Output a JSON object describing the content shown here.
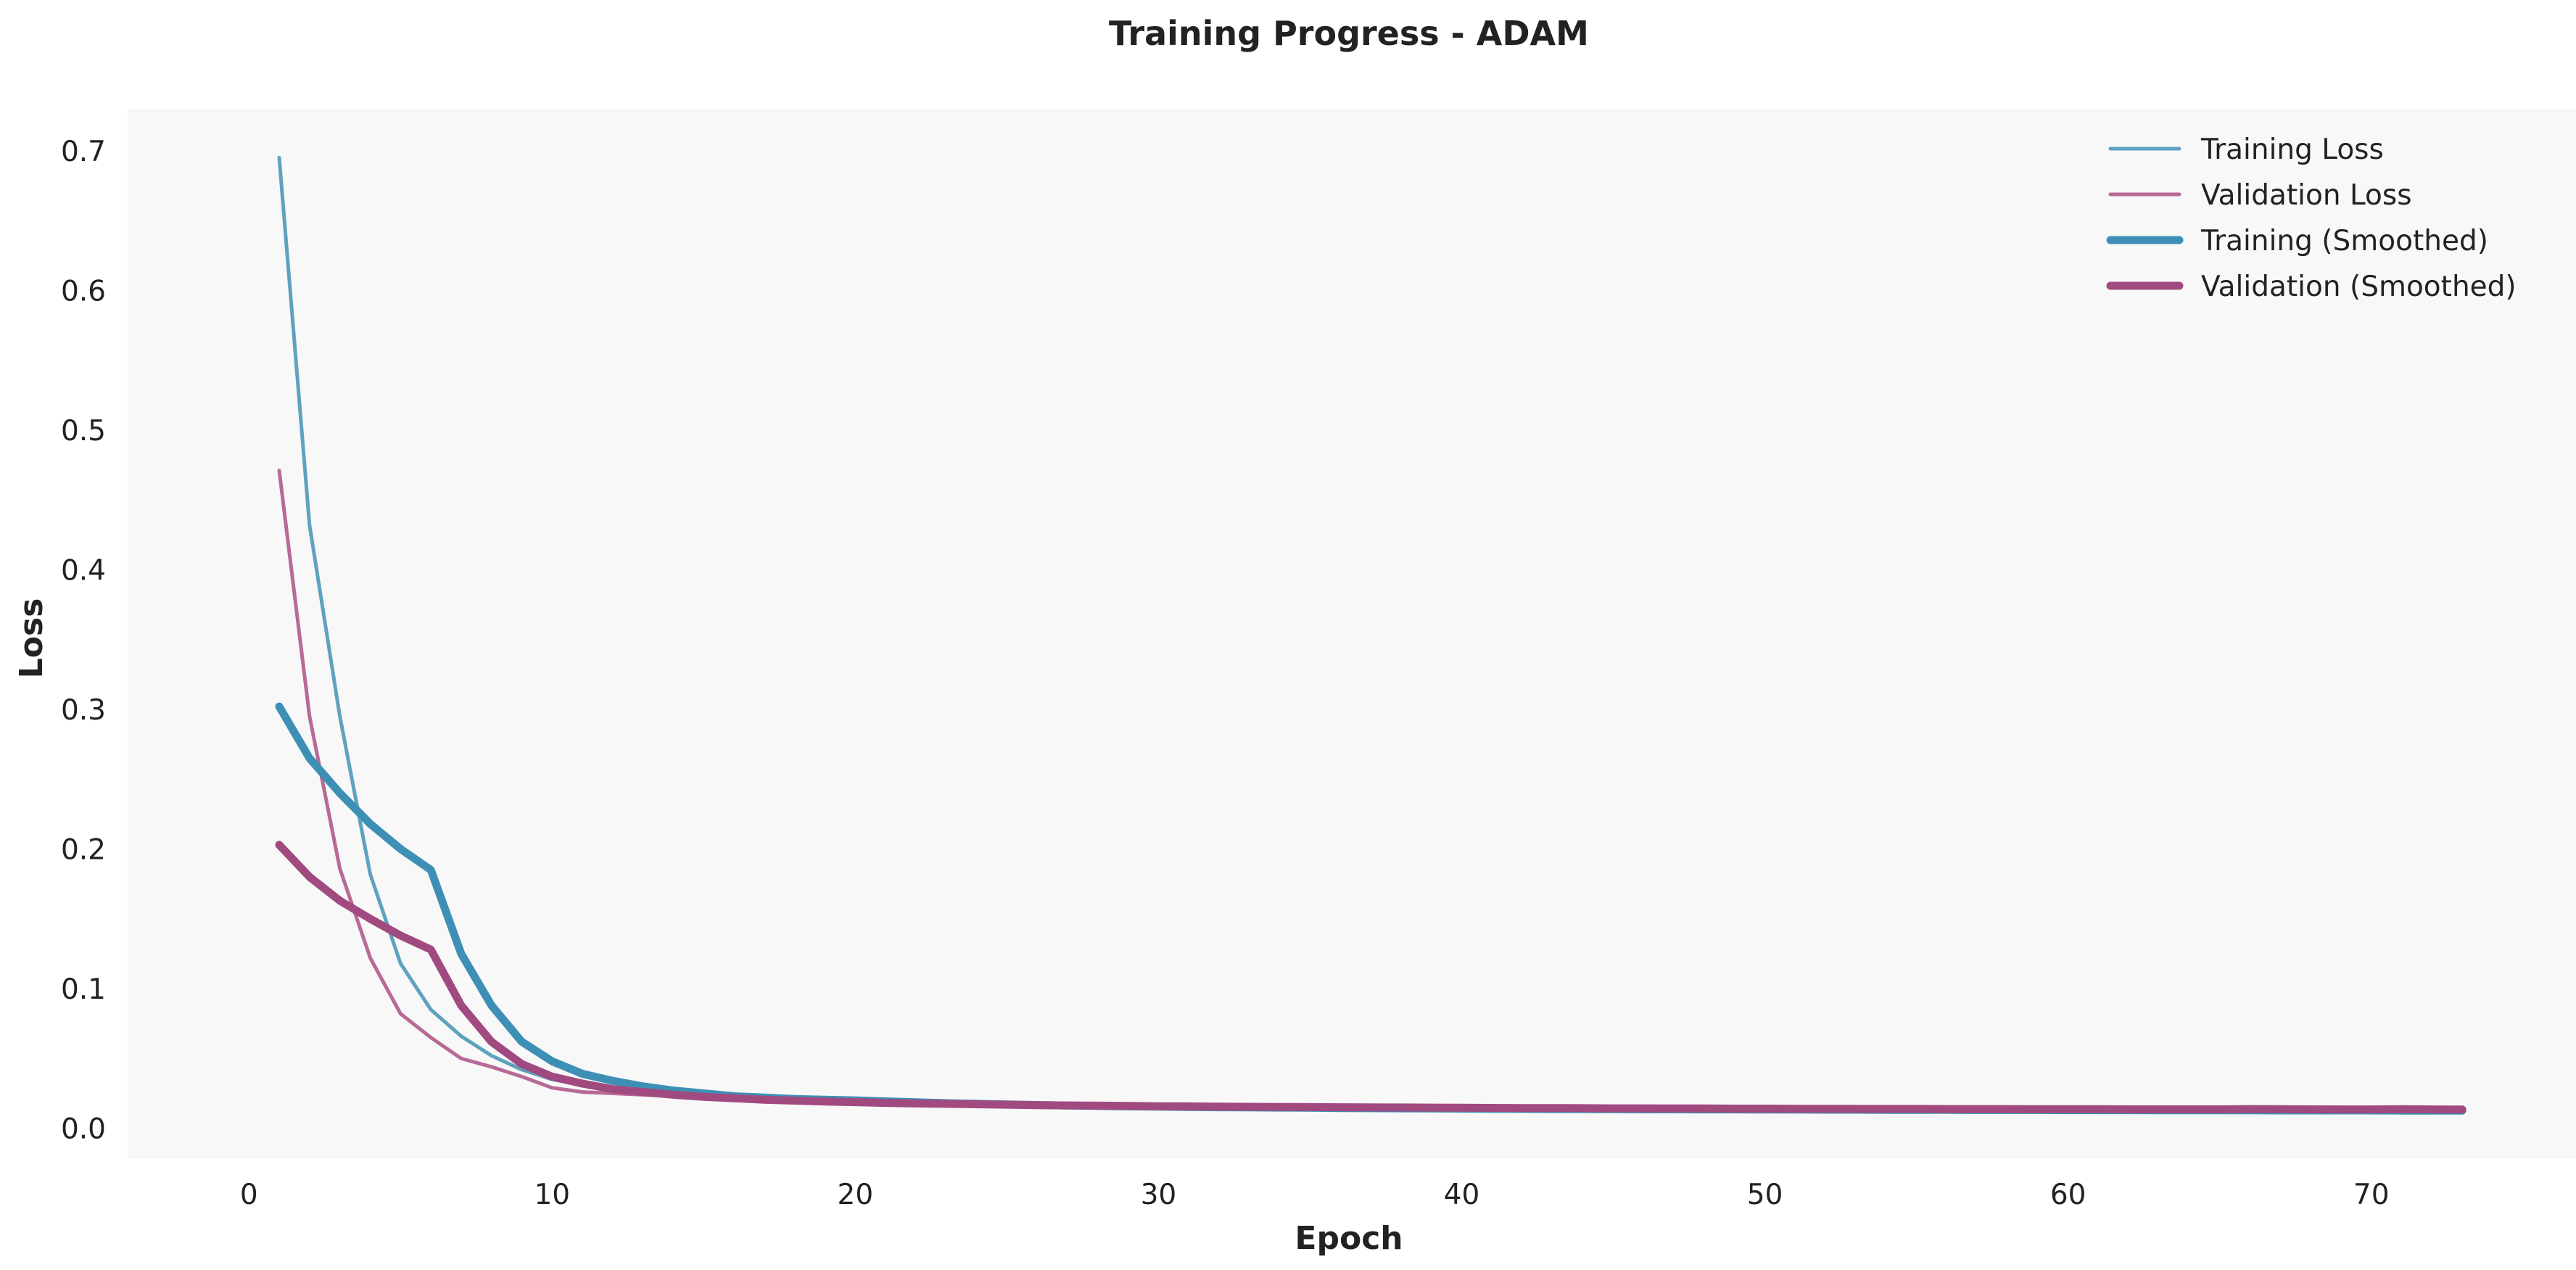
{
  "chart_data": {
    "type": "line",
    "title": "Training Progress - ADAM",
    "xlabel": "Epoch",
    "ylabel": "Loss",
    "xlim": [
      -4.0,
      76.8
    ],
    "ylim": [
      -0.022,
      0.73
    ],
    "xticks": [
      0,
      10,
      20,
      30,
      40,
      50,
      60,
      70
    ],
    "yticks": [
      0.0,
      0.1,
      0.2,
      0.3,
      0.4,
      0.5,
      0.6,
      0.7
    ],
    "xtick_labels": [
      "0",
      "10",
      "20",
      "30",
      "40",
      "50",
      "60",
      "70"
    ],
    "ytick_labels": [
      "0.0",
      "0.1",
      "0.2",
      "0.3",
      "0.4",
      "0.5",
      "0.6",
      "0.7"
    ],
    "grid": false,
    "plot_background": "#f8f8f8",
    "legend_position": "top-right",
    "x": [
      1,
      2,
      3,
      4,
      5,
      6,
      7,
      8,
      9,
      10,
      11,
      12,
      13,
      14,
      15,
      16,
      17,
      18,
      19,
      20,
      21,
      22,
      23,
      24,
      25,
      26,
      27,
      28,
      29,
      30,
      31,
      32,
      33,
      34,
      35,
      36,
      37,
      38,
      39,
      40,
      41,
      42,
      43,
      44,
      45,
      46,
      47,
      48,
      49,
      50,
      51,
      52,
      53,
      54,
      55,
      56,
      57,
      58,
      59,
      60,
      61,
      62,
      63,
      64,
      65,
      66,
      67,
      68,
      69,
      70,
      71,
      72,
      73
    ],
    "series": [
      {
        "name": "Training Loss",
        "color": "#5fa2c0",
        "style": "thin",
        "values": [
          0.695,
          0.432,
          0.295,
          0.182,
          0.118,
          0.085,
          0.066,
          0.052,
          0.042,
          0.035,
          0.031,
          0.028,
          0.026,
          0.024,
          0.023,
          0.022,
          0.021,
          0.02,
          0.019,
          0.018,
          0.0175,
          0.017,
          0.0165,
          0.016,
          0.0158,
          0.0155,
          0.0152,
          0.015,
          0.0148,
          0.0146,
          0.0145,
          0.0144,
          0.0143,
          0.0142,
          0.0141,
          0.014,
          0.0139,
          0.0138,
          0.0137,
          0.0136,
          0.0136,
          0.0135,
          0.0135,
          0.0134,
          0.0134,
          0.0133,
          0.0133,
          0.0132,
          0.0132,
          0.0132,
          0.0131,
          0.0131,
          0.0131,
          0.013,
          0.013,
          0.013,
          0.013,
          0.0129,
          0.0129,
          0.0129,
          0.0129,
          0.0128,
          0.0128,
          0.0128,
          0.0128,
          0.0128,
          0.0127,
          0.0127,
          0.0127,
          0.0127,
          0.0127,
          0.0126,
          0.0126
        ]
      },
      {
        "name": "Validation Loss",
        "color": "#b86a96",
        "style": "thin",
        "values": [
          0.471,
          0.295,
          0.186,
          0.122,
          0.082,
          0.065,
          0.05,
          0.044,
          0.037,
          0.029,
          0.026,
          0.025,
          0.024,
          0.023,
          0.022,
          0.021,
          0.0205,
          0.02,
          0.0195,
          0.019,
          0.0185,
          0.018,
          0.0178,
          0.0175,
          0.0172,
          0.017,
          0.0168,
          0.0165,
          0.0163,
          0.016,
          0.0158,
          0.0157,
          0.0155,
          0.0154,
          0.0152,
          0.0151,
          0.015,
          0.0149,
          0.0148,
          0.0147,
          0.0146,
          0.0145,
          0.0144,
          0.0143,
          0.0143,
          0.0142,
          0.0141,
          0.0141,
          0.014,
          0.014,
          0.0139,
          0.0139,
          0.0138,
          0.0138,
          0.0138,
          0.0137,
          0.0137,
          0.0136,
          0.0136,
          0.0136,
          0.0136,
          0.0135,
          0.0135,
          0.0135,
          0.0135,
          0.0152,
          0.0134,
          0.0134,
          0.0134,
          0.0134,
          0.0142,
          0.0133,
          0.0133
        ]
      },
      {
        "name": "Training (Smoothed)",
        "color": "#3e8fb5",
        "style": "thick",
        "values": [
          0.302,
          0.265,
          0.24,
          0.218,
          0.2,
          0.185,
          0.125,
          0.088,
          0.062,
          0.048,
          0.039,
          0.034,
          0.03,
          0.027,
          0.025,
          0.023,
          0.022,
          0.021,
          0.0205,
          0.02,
          0.0193,
          0.0186,
          0.018,
          0.0175,
          0.0171,
          0.0167,
          0.0163,
          0.016,
          0.0157,
          0.0155,
          0.0153,
          0.0151,
          0.015,
          0.0148,
          0.0147,
          0.0145,
          0.0144,
          0.0143,
          0.0142,
          0.0141,
          0.014,
          0.0139,
          0.0138,
          0.0138,
          0.0137,
          0.0136,
          0.0136,
          0.0135,
          0.0135,
          0.0134,
          0.0134,
          0.0133,
          0.0133,
          0.0132,
          0.0132,
          0.0132,
          0.0131,
          0.0131,
          0.0131,
          0.013,
          0.013,
          0.013,
          0.0129,
          0.0129,
          0.0129,
          0.0129,
          0.0128,
          0.0128,
          0.0128,
          0.0128,
          0.0127,
          0.0127,
          0.0127
        ]
      },
      {
        "name": "Validation (Smoothed)",
        "color": "#a14a80",
        "style": "thick",
        "values": [
          0.203,
          0.18,
          0.163,
          0.15,
          0.138,
          0.128,
          0.088,
          0.062,
          0.046,
          0.037,
          0.032,
          0.028,
          0.026,
          0.024,
          0.0225,
          0.0215,
          0.0205,
          0.0198,
          0.0192,
          0.0187,
          0.0182,
          0.0178,
          0.0175,
          0.0172,
          0.0169,
          0.0166,
          0.0164,
          0.0162,
          0.016,
          0.0158,
          0.0157,
          0.0155,
          0.0154,
          0.0153,
          0.0152,
          0.0151,
          0.015,
          0.0149,
          0.0148,
          0.0147,
          0.0146,
          0.0145,
          0.0145,
          0.0144,
          0.0143,
          0.0143,
          0.0142,
          0.0142,
          0.0141,
          0.0141,
          0.014,
          0.014,
          0.0139,
          0.0139,
          0.0139,
          0.0138,
          0.0138,
          0.0138,
          0.0137,
          0.0137,
          0.0137,
          0.0136,
          0.0136,
          0.0136,
          0.0136,
          0.0138,
          0.0137,
          0.0136,
          0.0135,
          0.0135,
          0.0137,
          0.0135,
          0.0134
        ]
      }
    ]
  }
}
